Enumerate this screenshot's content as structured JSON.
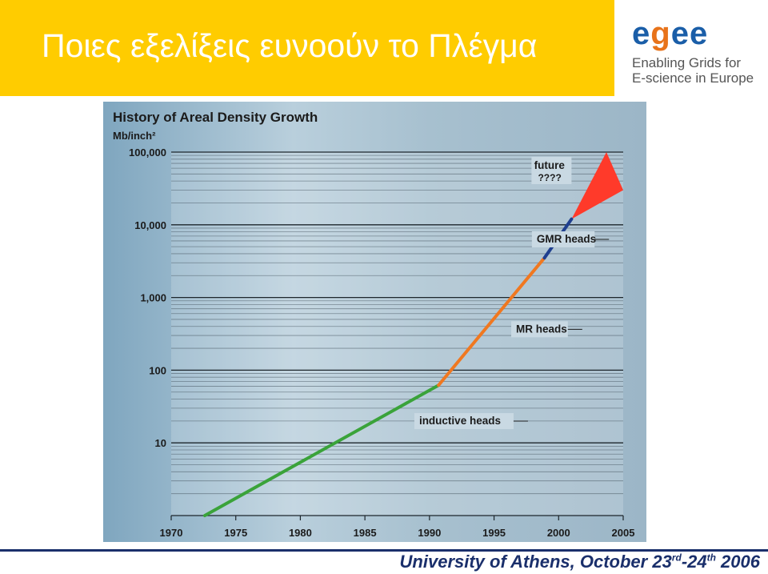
{
  "slide": {
    "title": "Ποιες εξελίξεις ευνοούν το Πλέγμα",
    "footer_main": "University of Athens, October 23",
    "footer_sup1": "rd",
    "footer_mid": "-24",
    "footer_sup2": "th",
    "footer_end": " 2006"
  },
  "logo": {
    "word": "egee",
    "line1": "Enabling Grids for",
    "line2": "E-science in Europe",
    "brand_color": "#1a5ea8",
    "accent_color": "#e8731a"
  },
  "chart_data": {
    "type": "line",
    "title": "History of Areal Density Growth",
    "ylabel": "Mb/inch²",
    "yscale": "log",
    "ylim": [
      1,
      100000
    ],
    "xlim": [
      1970,
      2005
    ],
    "y_ticks": [
      "100,000",
      "10,000",
      "1,000",
      "100",
      "10"
    ],
    "y_tick_values": [
      100000,
      10000,
      1000,
      100,
      10
    ],
    "x_ticks": [
      "1970",
      "1975",
      "1980",
      "1985",
      "1990",
      "1995",
      "2000",
      "2005"
    ],
    "x_tick_values": [
      1970,
      1975,
      1980,
      1985,
      1990,
      1995,
      2000,
      2005
    ],
    "series": [
      {
        "name": "inductive heads",
        "color": "#3aa33a",
        "x": [
          1972.6,
          1990.7
        ],
        "y": [
          1,
          62
        ]
      },
      {
        "name": "MR heads",
        "color": "#f07820",
        "x": [
          1990.7,
          1998.9
        ],
        "y": [
          62,
          3500
        ]
      },
      {
        "name": "GMR heads",
        "color": "#1f3f8f",
        "x": [
          1998.9,
          2001
        ],
        "y": [
          3500,
          12000
        ]
      }
    ],
    "future": {
      "label1": "future",
      "label2": "????",
      "color": "#ff3a2a",
      "apex": [
        2001,
        12000
      ],
      "top": [
        2003.7,
        100000
      ],
      "bottom": [
        2005,
        30000
      ]
    },
    "grid": true,
    "background": "#a9c3d3"
  }
}
